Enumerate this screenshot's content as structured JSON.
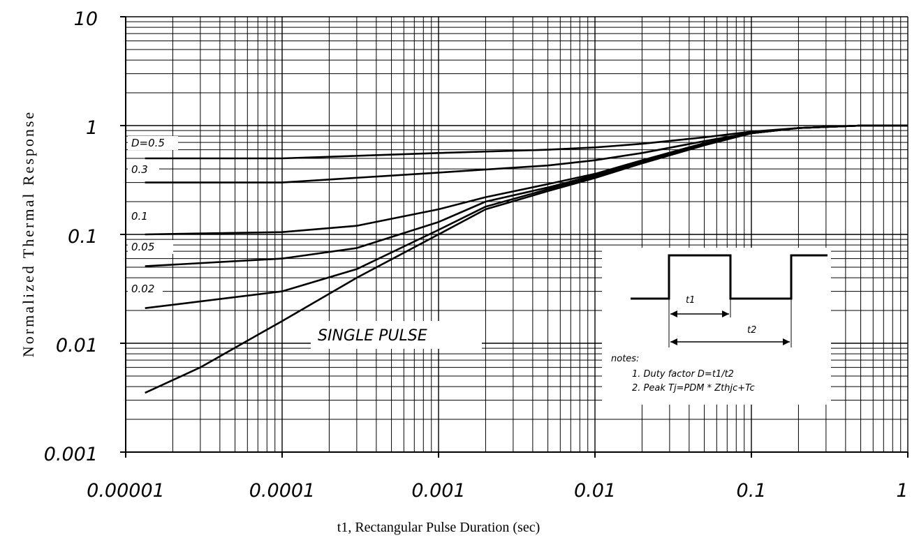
{
  "chart_data": {
    "type": "line",
    "xscale": "log",
    "yscale": "log",
    "xlim": [
      1e-05,
      1
    ],
    "ylim": [
      0.001,
      10
    ],
    "grid": true,
    "xlabel": "t1, Rectangular Pulse Duration (sec)",
    "ylabel": "Normalized Thermal Response",
    "x_tick_labels": [
      "0.00001",
      "0.0001",
      "0.001",
      "0.01",
      "0.1",
      "1"
    ],
    "y_tick_labels": [
      "0.001",
      "0.01",
      "0.1",
      "1",
      "10"
    ],
    "series": [
      {
        "name": "D=0.5",
        "x": [
          1.33e-05,
          0.0001,
          0.001,
          0.005,
          0.01,
          0.02,
          0.05,
          0.1,
          0.2,
          0.5,
          1
        ],
        "y": [
          0.5,
          0.5,
          0.56,
          0.6,
          0.63,
          0.68,
          0.78,
          0.88,
          0.95,
          1.0,
          1.0
        ]
      },
      {
        "name": "0.3",
        "x": [
          1.33e-05,
          0.0001,
          0.001,
          0.005,
          0.01,
          0.02,
          0.05,
          0.1,
          0.2,
          0.5,
          1
        ],
        "y": [
          0.3,
          0.3,
          0.37,
          0.43,
          0.48,
          0.56,
          0.72,
          0.86,
          0.95,
          1.0,
          1.0
        ]
      },
      {
        "name": "0.1",
        "x": [
          1.33e-05,
          0.0001,
          0.0003,
          0.001,
          0.002,
          0.005,
          0.01,
          0.02,
          0.05,
          0.1,
          0.2,
          0.5,
          1
        ],
        "y": [
          0.1,
          0.105,
          0.12,
          0.17,
          0.22,
          0.29,
          0.36,
          0.48,
          0.69,
          0.85,
          0.95,
          1.0,
          1.0
        ]
      },
      {
        "name": "0.05",
        "x": [
          1.33e-05,
          0.0001,
          0.0003,
          0.001,
          0.002,
          0.005,
          0.01,
          0.02,
          0.05,
          0.1,
          0.2,
          0.5,
          1
        ],
        "y": [
          0.051,
          0.06,
          0.075,
          0.13,
          0.2,
          0.27,
          0.35,
          0.47,
          0.68,
          0.85,
          0.95,
          1.0,
          1.0
        ]
      },
      {
        "name": "0.02",
        "x": [
          1.33e-05,
          0.0001,
          0.0003,
          0.001,
          0.002,
          0.005,
          0.01,
          0.02,
          0.05,
          0.1,
          0.2,
          0.5,
          1
        ],
        "y": [
          0.021,
          0.03,
          0.048,
          0.11,
          0.18,
          0.26,
          0.34,
          0.46,
          0.67,
          0.85,
          0.95,
          1.0,
          1.0
        ]
      },
      {
        "name": "SINGLE PULSE",
        "x": [
          1.33e-05,
          3e-05,
          0.0001,
          0.0003,
          0.001,
          0.002,
          0.005,
          0.01,
          0.02,
          0.05,
          0.1,
          0.2,
          0.5,
          1
        ],
        "y": [
          0.0035,
          0.006,
          0.016,
          0.04,
          0.1,
          0.17,
          0.25,
          0.33,
          0.45,
          0.66,
          0.85,
          0.95,
          1.0,
          1.0
        ]
      }
    ],
    "annotation": "SINGLE PULSE",
    "inset": {
      "t1_label": "t1",
      "t2_label": "t2",
      "notes_title": "notes:",
      "note_1": "1. Duty factor D=t1/t2",
      "note_2": "2. Peak Tj=PDM * Zthjc+Tc"
    }
  }
}
